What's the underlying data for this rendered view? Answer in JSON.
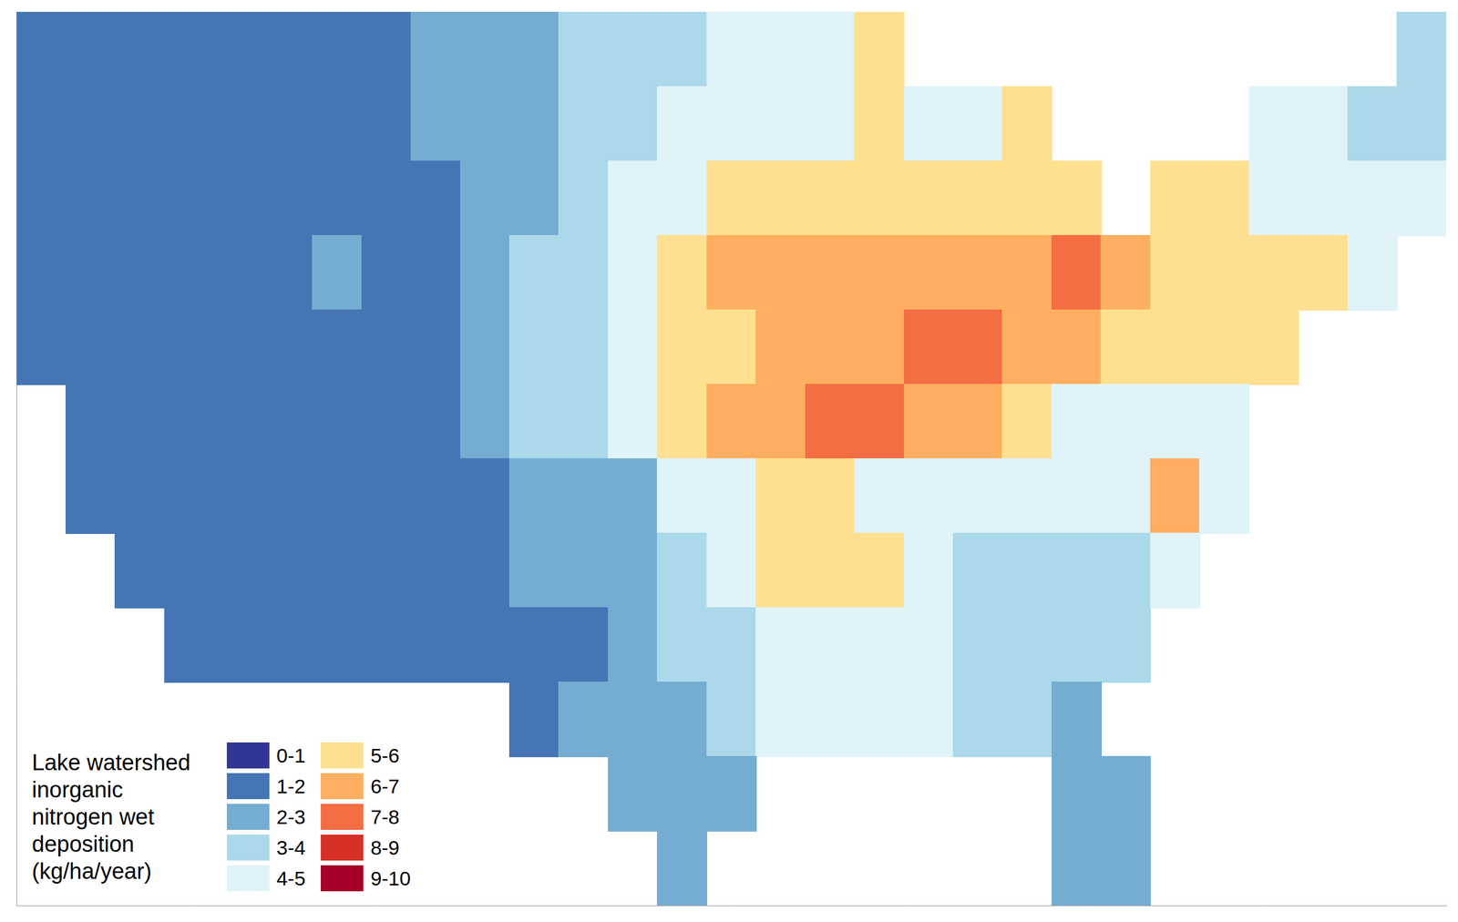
{
  "chart_data": {
    "type": "heatmap",
    "title": "Lake watershed inorganic nitrogen wet deposition (kg/ha/year)",
    "x": [
      -124,
      -122,
      -120,
      -118,
      -116,
      -114,
      -112,
      -110,
      -108,
      -106,
      -104,
      -102,
      -100,
      -98,
      -96,
      -94,
      -92,
      -90,
      -88,
      -86,
      -84,
      -82,
      -80,
      -78,
      -76,
      -74,
      -72,
      -70,
      -68
    ],
    "y": [
      48,
      46,
      44,
      42,
      40,
      38,
      36,
      34,
      32,
      30,
      28,
      26
    ],
    "cells": [
      [
        1.5,
        1.5,
        1,
        1.5,
        1.5,
        1,
        1.5,
        1.5,
        2,
        2,
        2.5,
        3,
        3,
        3.5,
        4,
        4.5,
        4.5,
        5,
        null,
        null,
        null,
        null,
        null,
        null,
        null,
        null,
        null,
        null,
        3.5
      ],
      [
        1.5,
        1.5,
        1,
        1.5,
        1.5,
        1,
        1.5,
        1.5,
        2,
        2,
        2.5,
        3,
        3.5,
        4,
        4.5,
        4.5,
        4.5,
        5,
        4,
        4.5,
        5,
        null,
        null,
        null,
        null,
        4,
        4,
        3.5,
        3.5
      ],
      [
        1.5,
        1,
        1,
        1.5,
        1.5,
        1.5,
        1.5,
        1,
        1.5,
        2,
        2.5,
        3.5,
        4,
        4.5,
        5,
        5,
        5,
        5.5,
        5.5,
        5.5,
        5.5,
        5,
        null,
        5,
        5,
        4.5,
        4.5,
        4,
        4
      ],
      [
        1.5,
        1,
        1,
        1,
        1,
        1.5,
        2,
        1.5,
        1.5,
        2,
        3,
        3.5,
        4.5,
        5.5,
        6,
        6.5,
        6.5,
        6,
        6.5,
        6,
        6.5,
        7,
        6,
        5.5,
        5.5,
        5,
        5,
        4,
        null
      ],
      [
        1.5,
        1,
        1,
        1,
        1,
        1,
        1.5,
        1.5,
        1.5,
        2,
        3,
        3.5,
        4.5,
        5,
        5.5,
        6.5,
        6.5,
        6.5,
        7,
        7.5,
        6.5,
        6,
        5.5,
        5,
        5,
        5,
        null,
        null,
        null
      ],
      [
        null,
        1.5,
        1,
        1,
        1,
        1,
        1,
        1.5,
        1.5,
        2,
        3,
        3.5,
        4,
        5.5,
        6,
        6.5,
        7.5,
        7,
        6,
        6,
        5,
        4.5,
        4.5,
        4,
        4,
        null,
        null,
        null,
        null
      ],
      [
        null,
        1.5,
        1.5,
        1,
        1,
        1,
        1,
        1.5,
        1.5,
        1.5,
        2,
        2.5,
        2,
        4,
        4.5,
        5,
        5,
        4.5,
        4.5,
        4.5,
        4,
        4,
        4,
        6,
        4,
        null,
        null,
        null,
        null
      ],
      [
        null,
        null,
        1.5,
        1.5,
        1,
        1,
        1,
        1.5,
        1.5,
        1.5,
        2,
        2,
        2.5,
        3.5,
        4.5,
        5,
        5,
        5.5,
        4,
        3.5,
        3,
        3.5,
        3.5,
        4,
        null,
        null,
        null,
        null,
        null
      ],
      [
        null,
        null,
        null,
        1.5,
        1,
        1,
        1,
        1,
        1.5,
        1.5,
        1.5,
        1.5,
        2.5,
        3,
        3.5,
        4.5,
        4.5,
        4.5,
        4,
        3.5,
        3,
        3,
        3.5,
        null,
        null,
        null,
        null,
        null,
        null
      ],
      [
        null,
        null,
        null,
        null,
        null,
        null,
        null,
        null,
        null,
        null,
        1.5,
        2,
        2.5,
        2.5,
        3,
        4,
        4,
        4,
        4,
        3.5,
        3,
        2.5,
        null,
        null,
        null,
        null,
        null,
        null,
        null
      ],
      [
        null,
        null,
        null,
        null,
        null,
        null,
        null,
        null,
        null,
        null,
        null,
        null,
        2,
        2,
        2.5,
        null,
        null,
        null,
        null,
        null,
        null,
        2.5,
        2.5,
        null,
        null,
        null,
        null,
        null,
        null
      ],
      [
        null,
        null,
        null,
        null,
        null,
        null,
        null,
        null,
        null,
        null,
        null,
        null,
        null,
        2,
        null,
        null,
        null,
        null,
        null,
        null,
        null,
        2.5,
        2.5,
        null,
        null,
        null,
        null,
        null,
        null
      ]
    ],
    "xlim": [
      -125,
      -67
    ],
    "ylim": [
      25,
      49
    ],
    "tick_labels": false,
    "grid": false,
    "legend": "lower left",
    "color_bar": {
      "bins": [
        0,
        1,
        2,
        3,
        4,
        5,
        6,
        7,
        8,
        9,
        10
      ],
      "labels": [
        "0-1",
        "1-2",
        "2-3",
        "3-4",
        "4-5",
        "5-6",
        "6-7",
        "7-8",
        "8-9",
        "9-10"
      ],
      "colors": [
        "#313695",
        "#4575b4",
        "#74add1",
        "#abd9e9",
        "#e0f3f8",
        "#fee090",
        "#fdae61",
        "#f46d43",
        "#d73027",
        "#a50026"
      ]
    }
  }
}
